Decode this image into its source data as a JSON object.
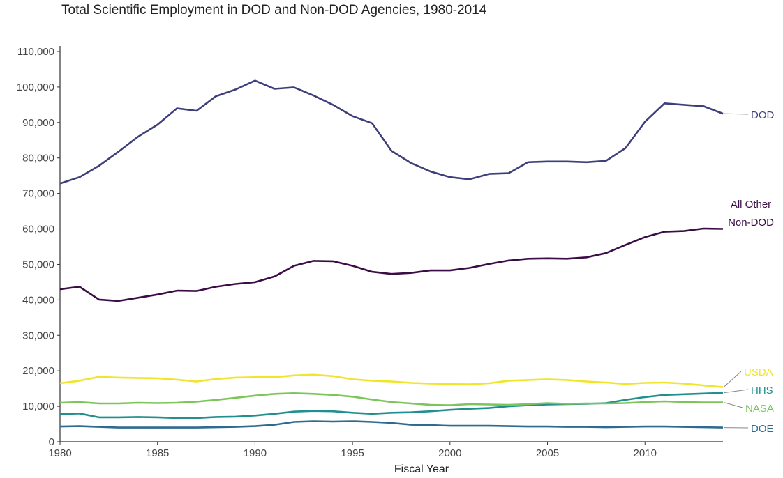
{
  "chart_data": {
    "type": "line",
    "title": "Total Scientific Employment in DOD and Non-DOD Agencies, 1980-2014",
    "xlabel": "Fiscal Year",
    "ylabel": "",
    "xlim": [
      1980,
      2014
    ],
    "ylim": [
      0,
      110000
    ],
    "grid": false,
    "legend": "direct labels at right end of lines",
    "x_ticks": [
      1980,
      1985,
      1990,
      1995,
      2000,
      2005,
      2010
    ],
    "x_tick_labels": [
      "1980",
      "1985",
      "1990",
      "1995",
      "2000",
      "2005",
      "2010"
    ],
    "y_ticks": [
      0,
      10000,
      20000,
      30000,
      40000,
      50000,
      60000,
      70000,
      80000,
      90000,
      100000,
      110000
    ],
    "y_tick_labels": [
      "0",
      "10,000",
      "20,000",
      "30,000",
      "40,000",
      "50,000",
      "60,000",
      "70,000",
      "80,000",
      "90,000",
      "100,000",
      "110,000"
    ],
    "x": [
      1980,
      1981,
      1982,
      1983,
      1984,
      1985,
      1986,
      1987,
      1988,
      1989,
      1990,
      1991,
      1992,
      1993,
      1994,
      1995,
      1996,
      1997,
      1998,
      1999,
      2000,
      2001,
      2002,
      2003,
      2004,
      2005,
      2006,
      2007,
      2008,
      2009,
      2010,
      2011,
      2012,
      2013,
      2014
    ],
    "series": [
      {
        "name": "DOD",
        "label_lines": [
          "DOD"
        ],
        "color": "#3e3f7a",
        "values": [
          72800,
          74600,
          77800,
          81800,
          86000,
          89400,
          94000,
          93300,
          97400,
          99300,
          101800,
          99500,
          99900,
          97600,
          95000,
          91800,
          89800,
          82000,
          78600,
          76200,
          74600,
          74000,
          75500,
          75700,
          78800,
          79000,
          79000,
          78800,
          79200,
          82800,
          90200,
          95400,
          95000,
          94600,
          92500
        ]
      },
      {
        "name": "All Other Non-DOD",
        "label_lines": [
          "All Other",
          "Non-DOD"
        ],
        "color": "#3b0d46",
        "values": [
          43000,
          43700,
          40100,
          39700,
          40600,
          41500,
          42600,
          42500,
          43700,
          44500,
          45000,
          46600,
          49600,
          51000,
          50900,
          49600,
          47900,
          47300,
          47600,
          48300,
          48300,
          49000,
          50100,
          51100,
          51600,
          51700,
          51600,
          52000,
          53200,
          55500,
          57700,
          59200,
          59400,
          60100,
          60000
        ]
      },
      {
        "name": "USDA",
        "label_lines": [
          "USDA"
        ],
        "color": "#f0e52a",
        "values": [
          16500,
          17200,
          18300,
          18100,
          18000,
          17900,
          17500,
          17000,
          17700,
          18100,
          18200,
          18200,
          18700,
          18900,
          18500,
          17600,
          17200,
          17000,
          16600,
          16400,
          16300,
          16200,
          16500,
          17200,
          17400,
          17600,
          17400,
          17000,
          16700,
          16300,
          16600,
          16700,
          16400,
          15900,
          15400
        ]
      },
      {
        "name": "HHS",
        "label_lines": [
          "HHS"
        ],
        "color": "#218f8d",
        "values": [
          7800,
          8000,
          6900,
          6900,
          7000,
          6900,
          6700,
          6700,
          7000,
          7100,
          7400,
          7900,
          8500,
          8700,
          8600,
          8200,
          7900,
          8200,
          8300,
          8600,
          9000,
          9300,
          9500,
          10000,
          10300,
          10500,
          10600,
          10700,
          10900,
          11800,
          12600,
          13200,
          13400,
          13600,
          13800
        ]
      },
      {
        "name": "NASA",
        "label_lines": [
          "NASA"
        ],
        "color": "#7cc55b",
        "values": [
          11000,
          11200,
          10800,
          10800,
          11000,
          10900,
          11000,
          11300,
          11800,
          12400,
          13000,
          13500,
          13700,
          13500,
          13200,
          12700,
          11900,
          11200,
          10800,
          10400,
          10300,
          10600,
          10500,
          10400,
          10600,
          10900,
          10700,
          10800,
          10800,
          10900,
          11200,
          11400,
          11200,
          11100,
          11100
        ]
      },
      {
        "name": "DOE",
        "label_lines": [
          "DOE"
        ],
        "color": "#2e6b8e",
        "values": [
          4300,
          4400,
          4200,
          4000,
          4000,
          4000,
          4000,
          4000,
          4100,
          4200,
          4400,
          4800,
          5600,
          5800,
          5700,
          5800,
          5600,
          5300,
          4800,
          4700,
          4500,
          4500,
          4500,
          4400,
          4300,
          4300,
          4200,
          4200,
          4100,
          4200,
          4300,
          4300,
          4200,
          4100,
          4000
        ]
      }
    ]
  }
}
